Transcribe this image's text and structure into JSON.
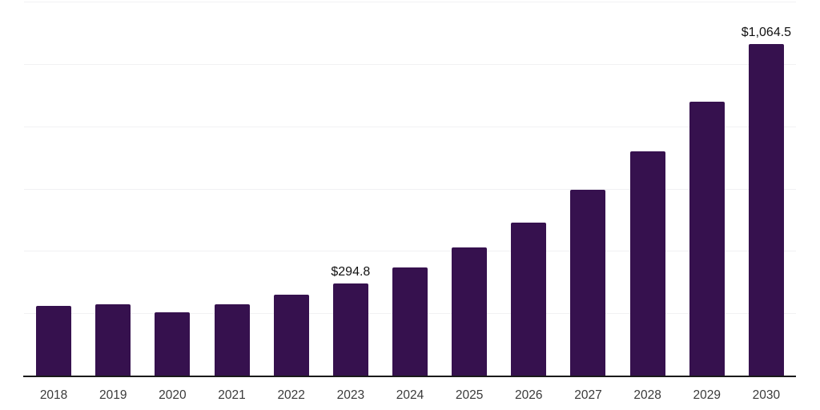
{
  "chart_data": {
    "type": "bar",
    "title": "",
    "xlabel": "",
    "ylabel": "",
    "categories": [
      "2018",
      "2019",
      "2020",
      "2021",
      "2022",
      "2023",
      "2024",
      "2025",
      "2026",
      "2027",
      "2028",
      "2029",
      "2030"
    ],
    "values": [
      223,
      228,
      203,
      228,
      259,
      294.8,
      348,
      412,
      492,
      595,
      720,
      878,
      1064.5
    ],
    "value_labels": [
      {
        "category": "2023",
        "text": "$294.8"
      },
      {
        "category": "2030",
        "text": "$1,064.5"
      }
    ],
    "ylim": [
      0,
      1200
    ],
    "gridline_step": 200,
    "y_axis_labels_visible": false,
    "grid": "horizontal",
    "legend": "none",
    "colors": {
      "bar": "#36114E",
      "axis_line": "#1A1A1A",
      "gridline": "#F1F1F3",
      "tick_label": "#3A3A3A",
      "value_label": "#111111",
      "background": "#FFFFFF"
    }
  }
}
